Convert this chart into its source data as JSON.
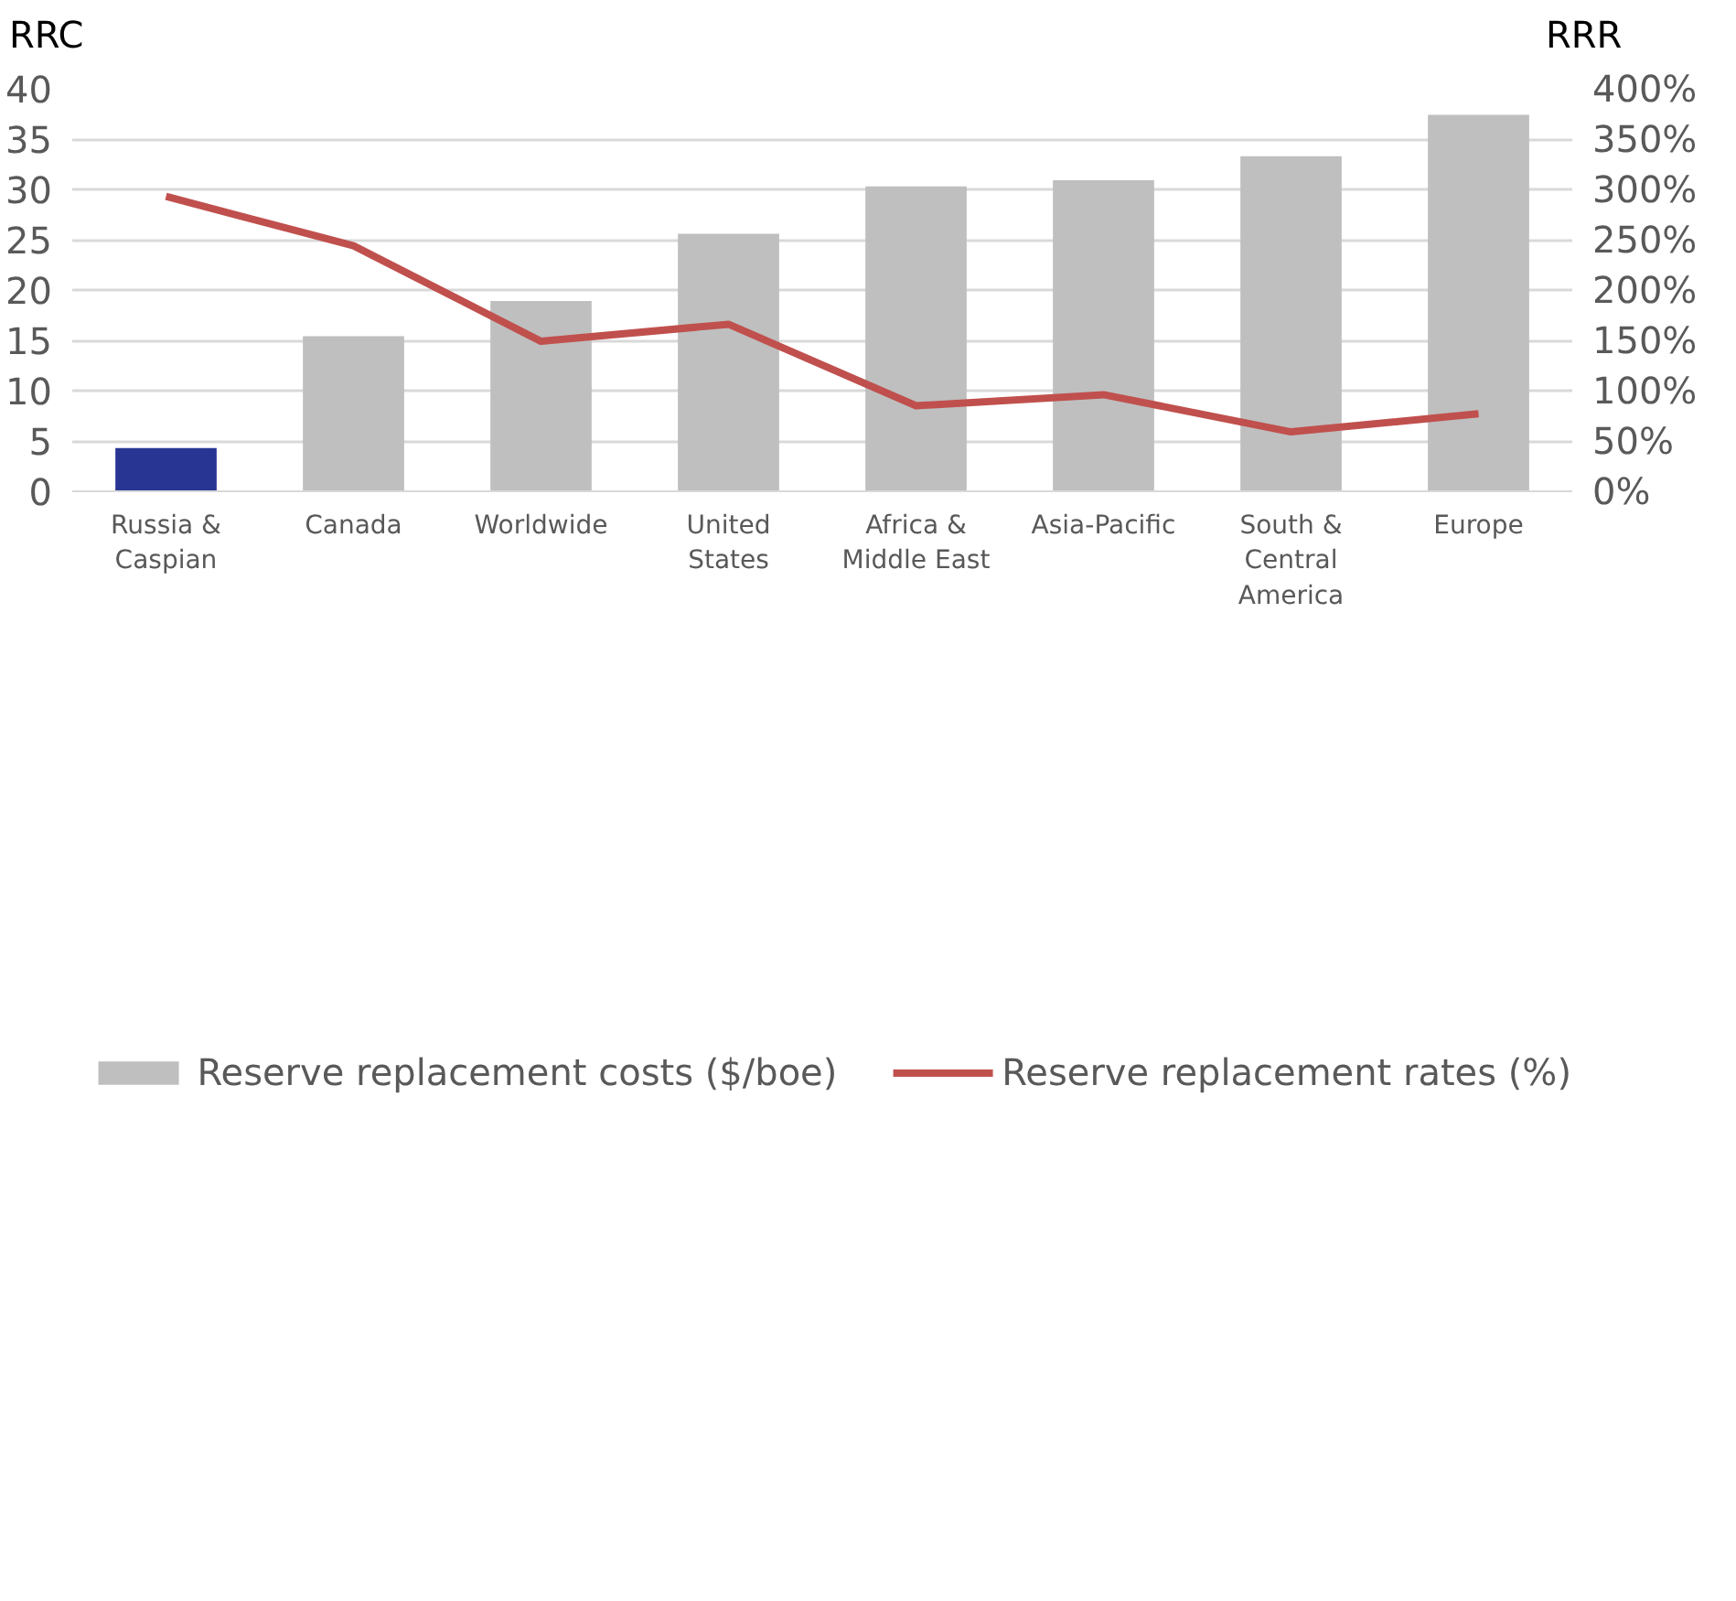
{
  "chart_data": {
    "type": "bar",
    "ylabel": "RRC",
    "y2label": "RRR",
    "categories": [
      "Russia & Caspian",
      "Canada",
      "Worldwide",
      "United States",
      "Africa & Middle East",
      "Asia-Pacific",
      "South & Central America",
      "Europe"
    ],
    "series": [
      {
        "name": "Reserve replacement costs ($/boe)",
        "color": "#bfbfbf",
        "colors": [
          "#283593",
          "#bfbfbf",
          "#bfbfbf",
          "#bfbfbf",
          "#bfbfbf",
          "#bfbfbf",
          "#bfbfbf",
          "#bfbfbf"
        ],
        "values": [
          4.3,
          15.4,
          18.9,
          25.6,
          30.3,
          30.9,
          33.3,
          37.4
        ]
      },
      {
        "name": "Reserve replacement rates (%)",
        "type": "line",
        "axis": "y2",
        "color": "#c0504d",
        "values": [
          293,
          244,
          149,
          166,
          85,
          96,
          59,
          77
        ]
      }
    ],
    "ylim": [
      0,
      40
    ],
    "yticks": [
      0,
      5,
      10,
      15,
      20,
      25,
      30,
      35,
      40
    ],
    "y2lim": [
      0,
      400
    ],
    "y2ticks": [
      {
        "value": 0,
        "label": "0%"
      },
      {
        "value": 50,
        "label": "50%"
      },
      {
        "value": 100,
        "label": "100%"
      },
      {
        "value": 150,
        "label": "150%"
      },
      {
        "value": 200,
        "label": "200%"
      },
      {
        "value": 250,
        "label": "250%"
      },
      {
        "value": 300,
        "label": "300%"
      },
      {
        "value": 350,
        "label": "350%"
      },
      {
        "value": 400,
        "label": "400%"
      }
    ],
    "grid": "y",
    "legend": "bottom",
    "line_style": "solid",
    "marker": "none"
  }
}
